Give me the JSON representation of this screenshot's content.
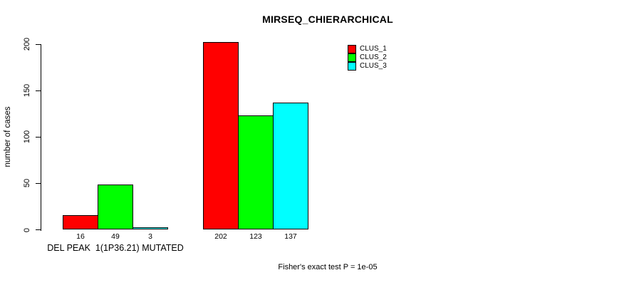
{
  "chart_data": {
    "type": "bar",
    "title": "MIRSEQ_CHIERARCHICAL",
    "xlabel": "",
    "ylabel": "number of cases",
    "categories": [
      "DEL PEAK  1(1P36.21) MUTATED",
      ""
    ],
    "series": [
      {
        "name": "CLUS_1",
        "color": "#FF0000",
        "values": [
          16,
          202
        ]
      },
      {
        "name": "CLUS_2",
        "color": "#00FF00",
        "values": [
          49,
          123
        ]
      },
      {
        "name": "CLUS_3",
        "color": "#00FFFF",
        "values": [
          3,
          137
        ]
      }
    ],
    "bar_value_labels": [
      [
        "16",
        "49",
        "3"
      ],
      [
        "202",
        "123",
        "137"
      ]
    ],
    "yticks": [
      "0",
      "50",
      "100",
      "150",
      "200"
    ],
    "ytick_values": [
      0,
      50,
      100,
      150,
      200
    ],
    "ylim": [
      0,
      202
    ],
    "grid": false,
    "legend_position": "top-right",
    "annotation": "Fisher's exact test P = 1e-05"
  },
  "colors": {
    "background": "#FFFFFF",
    "axis": "#000000",
    "bar_border": "#000000",
    "text": "#000000"
  }
}
